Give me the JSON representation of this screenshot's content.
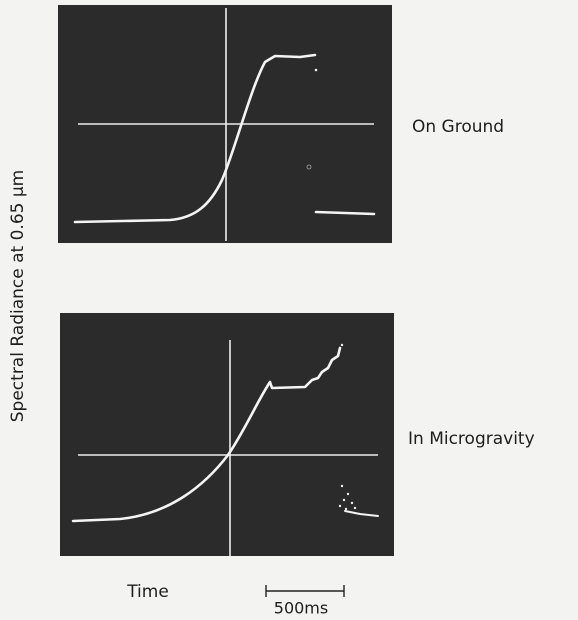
{
  "y_axis_label": "Spectral Radiance at 0.65 μm",
  "panels": [
    {
      "label": "On Ground"
    },
    {
      "label": "In Microgravity"
    }
  ],
  "x_axis_label": "Time",
  "scale_bar_label": "500ms"
}
